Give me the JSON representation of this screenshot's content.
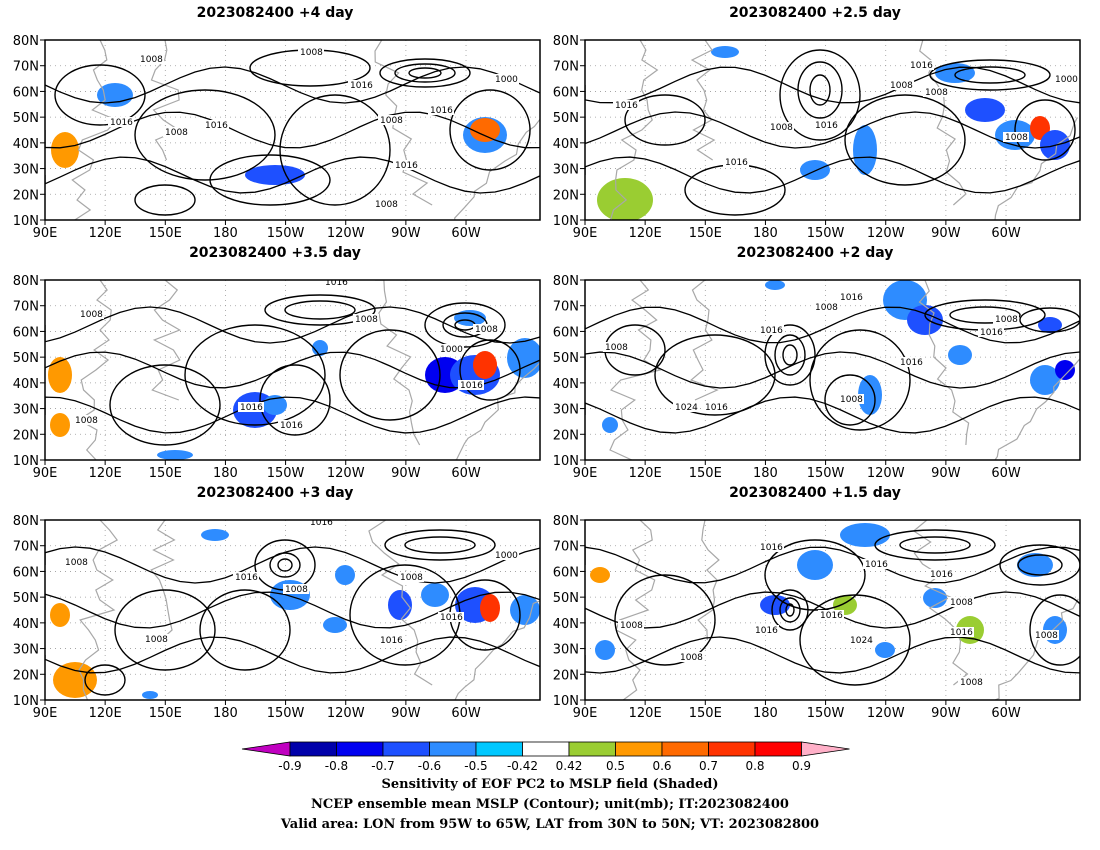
{
  "panels": [
    {
      "title": "2023082400  +4 day",
      "contour_labels": [
        "1008",
        "1008",
        "1000",
        "1016",
        "1016",
        "1016",
        "1008",
        "1016",
        "1008",
        "1016",
        "1008"
      ]
    },
    {
      "title": "2023082400  +2.5 day",
      "contour_labels": [
        "1016",
        "1000",
        "1008",
        "1016",
        "1008",
        "1008",
        "1016",
        "1016",
        "1008"
      ]
    },
    {
      "title": "2023082400  +3.5 day",
      "contour_labels": [
        "1016",
        "1008",
        "1008",
        "1000",
        "1008",
        "1016",
        "1016",
        "1016",
        "1008"
      ]
    },
    {
      "title": "2023082400  +2 day",
      "contour_labels": [
        "1016",
        "1008",
        "1008",
        "1016",
        "1016",
        "1016",
        "1008",
        "1016",
        "1008",
        "1024"
      ]
    },
    {
      "title": "2023082400  +3 day",
      "contour_labels": [
        "1016",
        "1008",
        "1016",
        "1008",
        "1008",
        "1000",
        "1016",
        "1008",
        "1016"
      ]
    },
    {
      "title": "2023082400  +1.5 day",
      "contour_labels": [
        "1008",
        "1016",
        "1016",
        "1016",
        "1008",
        "1016",
        "1016",
        "1008",
        "1008",
        "1024",
        "1008",
        "1016"
      ]
    }
  ],
  "map": {
    "lat_labels": [
      "80N",
      "70N",
      "60N",
      "50N",
      "40N",
      "30N",
      "20N",
      "10N"
    ],
    "lon_labels": [
      "90E",
      "120E",
      "150E",
      "180",
      "150W",
      "120W",
      "90W",
      "60W"
    ]
  },
  "colorbar": {
    "ticks": [
      "-0.9",
      "-0.8",
      "-0.7",
      "-0.6",
      "-0.5",
      "-0.42",
      "0.42",
      "0.5",
      "0.6",
      "0.7",
      "0.8",
      "0.9"
    ],
    "colors": [
      "#c000c0",
      "#0000aa",
      "#0000f0",
      "#1e50ff",
      "#2e8cff",
      "#00c8ff",
      "#ffffff",
      "#9acd32",
      "#ff9900",
      "#ff6a00",
      "#ff3300",
      "#ff0000",
      "#ffb0c8"
    ]
  },
  "captions": {
    "line1": "Sensitivity of EOF PC2 to MSLP field (Shaded)",
    "line2": "NCEP ensemble mean MSLP (Contour); unit(mb); IT:2023082400",
    "line3": "Valid area: LON from 95W to 65W, LAT from 30N to 50N; VT: 2023082800"
  }
}
